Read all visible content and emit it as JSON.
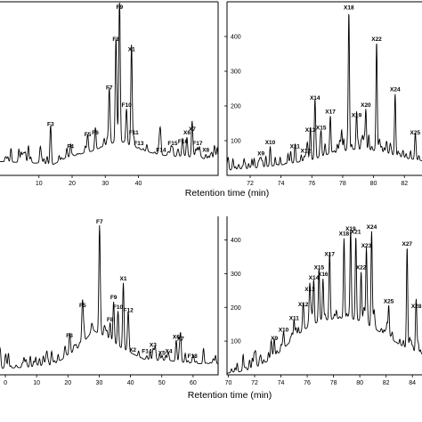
{
  "chart_data": [
    {
      "type": "line",
      "panel": "top-left",
      "xlabel": "Retention time (min)",
      "xlim": [
        -2,
        64
      ],
      "ylim": [
        0,
        100
      ],
      "x_ticks": [
        10,
        20,
        30,
        40
      ],
      "y_ticks": [],
      "series": [
        {
          "baseline": [
            [
              -2,
              8
            ],
            [
              10,
              7
            ],
            [
              14,
              6
            ],
            [
              18,
              10
            ],
            [
              22,
              12
            ],
            [
              26,
              14
            ],
            [
              30,
              17
            ],
            [
              34,
              20
            ],
            [
              38,
              17
            ],
            [
              42,
              14
            ],
            [
              46,
              12
            ],
            [
              50,
              11
            ],
            [
              54,
              11
            ],
            [
              58,
              10
            ],
            [
              62,
              9
            ],
            [
              64,
              9
            ]
          ],
          "peaks": [
            {
              "label": "F3",
              "x": 13.5,
              "y": 27
            },
            {
              "label": "F4",
              "x": 19.5,
              "y": 14
            },
            {
              "label": "F5",
              "x": 24.7,
              "y": 21
            },
            {
              "label": "F6",
              "x": 27.0,
              "y": 22
            },
            {
              "label": "F7",
              "x": 31.2,
              "y": 48
            },
            {
              "label": "F8",
              "x": 33.2,
              "y": 76
            },
            {
              "label": "F9",
              "x": 34.3,
              "y": 97
            },
            {
              "label": "F10",
              "x": 36.4,
              "y": 38
            },
            {
              "label": "X1",
              "x": 37.9,
              "y": 70
            },
            {
              "label": "F11",
              "x": 38.6,
              "y": 22
            },
            {
              "label": "F13",
              "x": 40.1,
              "y": 16
            },
            {
              "label": "F14",
              "x": 46.8,
              "y": 12
            },
            {
              "label": "F15",
              "x": 50.3,
              "y": 16
            },
            {
              "label": "F16",
              "x": 53.4,
              "y": 17
            },
            {
              "label": "X6",
              "x": 54.6,
              "y": 22
            },
            {
              "label": "X7",
              "x": 56.2,
              "y": 24
            },
            {
              "label": "F17",
              "x": 57.8,
              "y": 16
            },
            {
              "label": "X8",
              "x": 60.3,
              "y": 12
            }
          ]
        }
      ]
    },
    {
      "type": "line",
      "panel": "top-right",
      "xlim": [
        70.5,
        83.2
      ],
      "ylim": [
        0,
        500
      ],
      "x_ticks": [
        72,
        74,
        76,
        78,
        80,
        82
      ],
      "y_ticks": [
        100,
        200,
        300,
        400
      ],
      "series": [
        {
          "baseline": [
            [
              70.5,
              15
            ],
            [
              72,
              20
            ],
            [
              74,
              30
            ],
            [
              76,
              45
            ],
            [
              77,
              60
            ],
            [
              78,
              70
            ],
            [
              79,
              75
            ],
            [
              80,
              72
            ],
            [
              81,
              62
            ],
            [
              82,
              50
            ],
            [
              83.2,
              42
            ]
          ],
          "peaks": [
            {
              "label": "X9",
              "x": 72.7,
              "y": 50
            },
            {
              "label": "X10",
              "x": 73.3,
              "y": 82
            },
            {
              "label": "X11",
              "x": 74.9,
              "y": 70
            },
            {
              "label": "X12",
              "x": 75.6,
              "y": 58
            },
            {
              "label": "X13",
              "x": 75.9,
              "y": 118
            },
            {
              "label": "X14",
              "x": 76.2,
              "y": 210
            },
            {
              "label": "X15",
              "x": 76.6,
              "y": 125
            },
            {
              "label": "X17",
              "x": 77.2,
              "y": 170
            },
            {
              "label": "X18",
              "x": 78.4,
              "y": 470
            },
            {
              "label": "X19",
              "x": 78.9,
              "y": 160
            },
            {
              "label": "X20",
              "x": 79.5,
              "y": 190
            },
            {
              "label": "X22",
              "x": 80.2,
              "y": 380
            },
            {
              "label": "X24",
              "x": 81.4,
              "y": 235
            },
            {
              "label": "X25",
              "x": 82.7,
              "y": 110
            }
          ]
        }
      ]
    },
    {
      "type": "line",
      "panel": "bottom-left",
      "xlabel": "Retention time (min)",
      "xlim": [
        -2,
        68
      ],
      "ylim": [
        0,
        100
      ],
      "x_ticks": [
        0,
        10,
        20,
        30,
        40,
        50,
        60
      ],
      "y_ticks": [],
      "series": [
        {
          "baseline": [
            [
              -2,
              4
            ],
            [
              10,
              5
            ],
            [
              15,
              6
            ],
            [
              20,
              12
            ],
            [
              24,
              18
            ],
            [
              28,
              28
            ],
            [
              32,
              24
            ],
            [
              36,
              18
            ],
            [
              40,
              14
            ],
            [
              44,
              10
            ],
            [
              48,
              9
            ],
            [
              52,
              9
            ],
            [
              56,
              8
            ],
            [
              62,
              7
            ],
            [
              68,
              7
            ]
          ],
          "peaks": [
            {
              "label": "F3",
              "x": 20.5,
              "y": 22
            },
            {
              "label": "F5",
              "x": 24.7,
              "y": 41
            },
            {
              "label": "F7",
              "x": 30.1,
              "y": 94
            },
            {
              "label": "F8",
              "x": 33.5,
              "y": 32
            },
            {
              "label": "F9",
              "x": 34.6,
              "y": 46
            },
            {
              "label": "F10",
              "x": 36.0,
              "y": 40
            },
            {
              "label": "X1",
              "x": 37.7,
              "y": 58
            },
            {
              "label": "F12",
              "x": 39.3,
              "y": 38
            },
            {
              "label": "X2",
              "x": 40.7,
              "y": 13
            },
            {
              "label": "F14",
              "x": 45.2,
              "y": 12
            },
            {
              "label": "X3",
              "x": 47.2,
              "y": 16
            },
            {
              "label": "X5",
              "x": 50.0,
              "y": 11
            },
            {
              "label": "X4",
              "x": 52.2,
              "y": 12
            },
            {
              "label": "X6",
              "x": 54.6,
              "y": 21
            },
            {
              "label": "X7",
              "x": 56.0,
              "y": 20
            },
            {
              "label": "F18",
              "x": 59.8,
              "y": 9
            }
          ]
        }
      ]
    },
    {
      "type": "line",
      "panel": "bottom-right",
      "xlim": [
        69.9,
        84.8
      ],
      "ylim": [
        0,
        470
      ],
      "x_ticks": [
        70,
        72,
        74,
        76,
        78,
        80,
        82,
        84
      ],
      "y_ticks": [
        100,
        200,
        300,
        400
      ],
      "series": [
        {
          "baseline": [
            [
              69.9,
              5
            ],
            [
              71,
              10
            ],
            [
              72,
              20
            ],
            [
              73,
              40
            ],
            [
              74,
              70
            ],
            [
              75,
              110
            ],
            [
              76,
              140
            ],
            [
              77,
              160
            ],
            [
              78,
              165
            ],
            [
              79,
              170
            ],
            [
              80,
              160
            ],
            [
              81,
              140
            ],
            [
              82,
              115
            ],
            [
              83,
              90
            ],
            [
              84,
              70
            ],
            [
              84.8,
              60
            ]
          ],
          "peaks": [
            {
              "label": "X9",
              "x": 73.5,
              "y": 95
            },
            {
              "label": "X10",
              "x": 74.2,
              "y": 120
            },
            {
              "label": "X11",
              "x": 75.0,
              "y": 155
            },
            {
              "label": "X12",
              "x": 75.7,
              "y": 195
            },
            {
              "label": "X13",
              "x": 76.2,
              "y": 240
            },
            {
              "label": "X14",
              "x": 76.5,
              "y": 275
            },
            {
              "label": "X15",
              "x": 76.9,
              "y": 305
            },
            {
              "label": "X16",
              "x": 77.2,
              "y": 285
            },
            {
              "label": "X17",
              "x": 77.7,
              "y": 345
            },
            {
              "label": "X18",
              "x": 78.8,
              "y": 405
            },
            {
              "label": "X19",
              "x": 79.3,
              "y": 420
            },
            {
              "label": "X21",
              "x": 79.7,
              "y": 410
            },
            {
              "label": "X22",
              "x": 80.1,
              "y": 305
            },
            {
              "label": "X23",
              "x": 80.5,
              "y": 370
            },
            {
              "label": "X24",
              "x": 80.9,
              "y": 425
            },
            {
              "label": "X25",
              "x": 82.2,
              "y": 205
            },
            {
              "label": "X27",
              "x": 83.6,
              "y": 375
            },
            {
              "label": "X28",
              "x": 84.3,
              "y": 190
            }
          ]
        }
      ]
    }
  ]
}
